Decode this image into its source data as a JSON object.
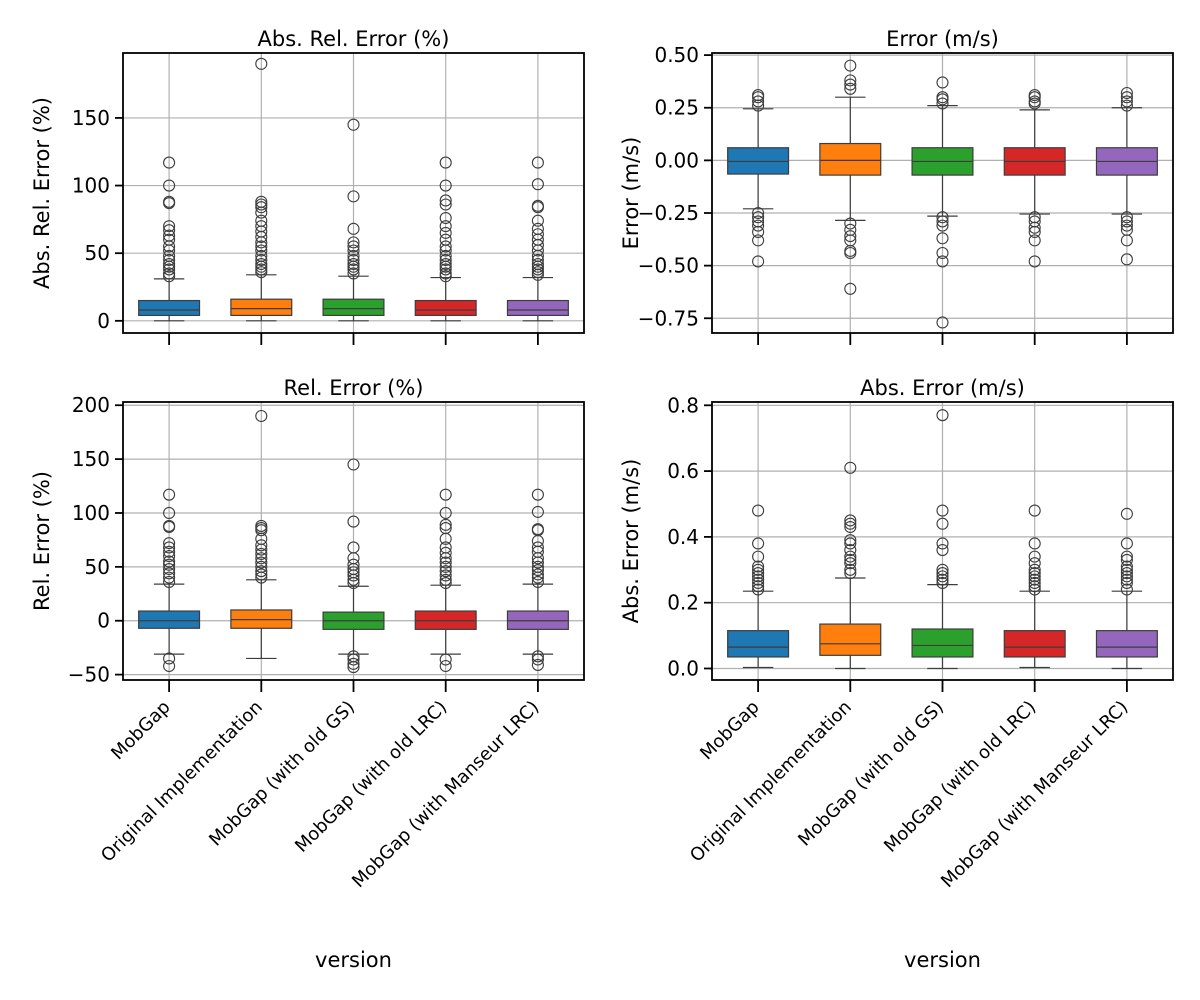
{
  "figure": {
    "xlabel": "version"
  },
  "colors": {
    "series": [
      "#1f77b4",
      "#ff7f0e",
      "#2ca02c",
      "#d62728",
      "#9467bd"
    ],
    "grid": "#b0b0b0",
    "box_edge": "#3d3d3d"
  },
  "chart_data": [
    {
      "type": "box",
      "title": "Abs. Rel. Error (%)",
      "ylabel": "Abs. Rel. Error (%)",
      "xlabel": "",
      "ylim": [
        -9,
        198
      ],
      "yticks": [
        0,
        50,
        100,
        150
      ],
      "ytick_labels": [
        "0",
        "50",
        "100",
        "150"
      ],
      "show_xtick_labels": false,
      "grid": true,
      "categories": [
        "MobGap",
        "Original Implementation",
        "MobGap (with old GS)",
        "MobGap (with old LRC)",
        "MobGap (with Manseur LRC)"
      ],
      "boxes": [
        {
          "whislo": 0,
          "q1": 4,
          "med": 8,
          "q3": 15,
          "whishi": 31,
          "fliers": [
            33,
            35,
            38,
            40,
            42,
            45,
            48,
            52,
            55,
            60,
            63,
            67,
            70,
            87,
            88,
            100,
            117
          ]
        },
        {
          "whislo": 0,
          "q1": 4,
          "med": 9,
          "q3": 16,
          "whishi": 34,
          "fliers": [
            36,
            38,
            40,
            42,
            45,
            48,
            52,
            55,
            58,
            62,
            66,
            70,
            74,
            80,
            84,
            86,
            88,
            190
          ]
        },
        {
          "whislo": 0,
          "q1": 4,
          "med": 9,
          "q3": 16,
          "whishi": 33,
          "fliers": [
            35,
            38,
            40,
            42,
            45,
            48,
            52,
            55,
            58,
            68,
            92,
            145
          ]
        },
        {
          "whislo": 0,
          "q1": 4,
          "med": 8,
          "q3": 15,
          "whishi": 32,
          "fliers": [
            33,
            35,
            38,
            40,
            42,
            45,
            48,
            52,
            55,
            60,
            65,
            70,
            76,
            86,
            89,
            100,
            117
          ]
        },
        {
          "whislo": 0,
          "q1": 4,
          "med": 8,
          "q3": 15,
          "whishi": 32,
          "fliers": [
            34,
            36,
            38,
            40,
            42,
            45,
            48,
            52,
            56,
            60,
            64,
            68,
            74,
            84,
            85,
            101,
            117
          ]
        }
      ]
    },
    {
      "type": "box",
      "title": "Error (m/s)",
      "ylabel": "Error (m/s)",
      "xlabel": "",
      "ylim": [
        -0.82,
        0.51
      ],
      "yticks": [
        -0.75,
        -0.5,
        -0.25,
        0,
        0.25,
        0.5
      ],
      "ytick_labels": [
        "−0.75",
        "−0.50",
        "−0.25",
        "0.00",
        "0.25",
        "0.50"
      ],
      "show_xtick_labels": false,
      "grid": true,
      "categories": [
        "MobGap",
        "Original Implementation",
        "MobGap (with old GS)",
        "MobGap (with old LRC)",
        "MobGap (with Manseur LRC)"
      ],
      "boxes": [
        {
          "whislo": -0.23,
          "q1": -0.065,
          "med": -0.005,
          "q3": 0.06,
          "whishi": 0.245,
          "fliers": [
            0.26,
            0.28,
            0.3,
            0.31,
            -0.25,
            -0.27,
            -0.29,
            -0.31,
            -0.34,
            -0.38,
            -0.48
          ]
        },
        {
          "whislo": -0.285,
          "q1": -0.07,
          "med": 0.0,
          "q3": 0.08,
          "whishi": 0.3,
          "fliers": [
            0.34,
            0.36,
            0.38,
            0.45,
            -0.3,
            -0.33,
            -0.36,
            -0.38,
            -0.43,
            -0.44,
            -0.61
          ]
        },
        {
          "whislo": -0.265,
          "q1": -0.07,
          "med": -0.005,
          "q3": 0.06,
          "whishi": 0.26,
          "fliers": [
            0.27,
            0.29,
            0.3,
            0.37,
            -0.27,
            -0.29,
            -0.31,
            -0.37,
            -0.44,
            -0.48,
            -0.77
          ]
        },
        {
          "whislo": -0.255,
          "q1": -0.07,
          "med": -0.005,
          "q3": 0.06,
          "whishi": 0.24,
          "fliers": [
            0.27,
            0.28,
            0.3,
            0.31,
            -0.27,
            -0.29,
            -0.32,
            -0.34,
            -0.38,
            -0.48
          ]
        },
        {
          "whislo": -0.255,
          "q1": -0.07,
          "med": -0.005,
          "q3": 0.06,
          "whishi": 0.25,
          "fliers": [
            0.26,
            0.28,
            0.3,
            0.32,
            -0.27,
            -0.29,
            -0.31,
            -0.33,
            -0.38,
            -0.47
          ]
        }
      ]
    },
    {
      "type": "box",
      "title": "Rel. Error (%)",
      "ylabel": "Rel. Error (%)",
      "xlabel": "version",
      "ylim": [
        -55,
        203
      ],
      "yticks": [
        -50,
        0,
        50,
        100,
        150,
        200
      ],
      "ytick_labels": [
        "−50",
        "0",
        "50",
        "100",
        "150",
        "200"
      ],
      "show_xtick_labels": true,
      "grid": true,
      "categories": [
        "MobGap",
        "Original Implementation",
        "MobGap (with old GS)",
        "MobGap (with old LRC)",
        "MobGap (with Manseur LRC)"
      ],
      "boxes": [
        {
          "whislo": -31,
          "q1": -7,
          "med": 0,
          "q3": 9,
          "whishi": 34,
          "fliers": [
            36,
            40,
            44,
            48,
            52,
            55,
            60,
            64,
            68,
            72,
            87,
            88,
            100,
            117,
            -35,
            -42
          ]
        },
        {
          "whislo": -35,
          "q1": -7,
          "med": 1,
          "q3": 10,
          "whishi": 38,
          "fliers": [
            40,
            43,
            46,
            50,
            54,
            58,
            62,
            66,
            70,
            76,
            84,
            86,
            88,
            190
          ]
        },
        {
          "whislo": -31,
          "q1": -8,
          "med": 0,
          "q3": 8,
          "whishi": 32,
          "fliers": [
            35,
            38,
            42,
            45,
            48,
            52,
            58,
            68,
            92,
            145,
            -33,
            -36,
            -40,
            -43
          ]
        },
        {
          "whislo": -31,
          "q1": -8,
          "med": 0,
          "q3": 9,
          "whishi": 33,
          "fliers": [
            35,
            38,
            42,
            46,
            50,
            54,
            58,
            63,
            68,
            76,
            86,
            89,
            100,
            117,
            -36,
            -42
          ]
        },
        {
          "whislo": -31,
          "q1": -8,
          "med": 0,
          "q3": 9,
          "whishi": 34,
          "fliers": [
            36,
            40,
            43,
            47,
            50,
            54,
            58,
            64,
            68,
            74,
            84,
            85,
            101,
            117,
            -33,
            -36,
            -41
          ]
        }
      ]
    },
    {
      "type": "box",
      "title": "Abs. Error (m/s)",
      "ylabel": "Abs. Error (m/s)",
      "xlabel": "version",
      "ylim": [
        -0.035,
        0.81
      ],
      "yticks": [
        0,
        0.2,
        0.4,
        0.6,
        0.8
      ],
      "ytick_labels": [
        "0.0",
        "0.2",
        "0.4",
        "0.6",
        "0.8"
      ],
      "show_xtick_labels": true,
      "grid": true,
      "categories": [
        "MobGap",
        "Original Implementation",
        "MobGap (with old GS)",
        "MobGap (with old LRC)",
        "MobGap (with Manseur LRC)"
      ],
      "boxes": [
        {
          "whislo": 0.003,
          "q1": 0.035,
          "med": 0.065,
          "q3": 0.115,
          "whishi": 0.235,
          "fliers": [
            0.24,
            0.25,
            0.26,
            0.27,
            0.28,
            0.29,
            0.3,
            0.31,
            0.34,
            0.38,
            0.48
          ]
        },
        {
          "whislo": 0.0,
          "q1": 0.04,
          "med": 0.075,
          "q3": 0.135,
          "whishi": 0.275,
          "fliers": [
            0.29,
            0.3,
            0.32,
            0.33,
            0.34,
            0.36,
            0.38,
            0.39,
            0.43,
            0.44,
            0.45,
            0.61
          ]
        },
        {
          "whislo": 0.0,
          "q1": 0.035,
          "med": 0.07,
          "q3": 0.12,
          "whishi": 0.255,
          "fliers": [
            0.26,
            0.27,
            0.28,
            0.29,
            0.3,
            0.36,
            0.38,
            0.44,
            0.48,
            0.77
          ]
        },
        {
          "whislo": 0.003,
          "q1": 0.035,
          "med": 0.065,
          "q3": 0.115,
          "whishi": 0.235,
          "fliers": [
            0.24,
            0.25,
            0.26,
            0.27,
            0.28,
            0.29,
            0.3,
            0.32,
            0.34,
            0.38,
            0.48
          ]
        },
        {
          "whislo": 0.0,
          "q1": 0.035,
          "med": 0.065,
          "q3": 0.115,
          "whishi": 0.235,
          "fliers": [
            0.24,
            0.26,
            0.27,
            0.28,
            0.29,
            0.3,
            0.31,
            0.33,
            0.34,
            0.38,
            0.47
          ]
        }
      ]
    }
  ]
}
